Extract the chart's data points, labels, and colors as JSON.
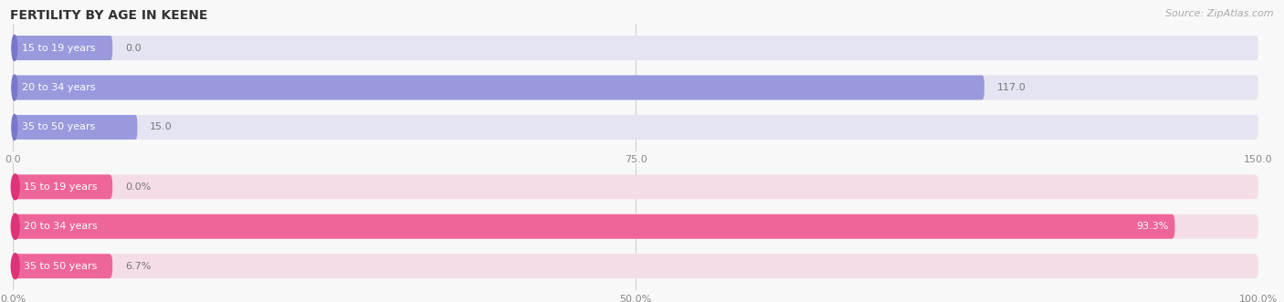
{
  "title": "FERTILITY BY AGE IN KEENE",
  "source": "Source: ZipAtlas.com",
  "top_chart": {
    "categories": [
      "15 to 19 years",
      "20 to 34 years",
      "35 to 50 years"
    ],
    "values": [
      0.0,
      117.0,
      15.0
    ],
    "max_value": 150.0,
    "tick_values": [
      0.0,
      75.0,
      150.0
    ],
    "bar_color": "#9999dd",
    "bar_bg_color": "#e4e4f2",
    "bar_dark_color": "#7777cc",
    "label_inside_color": "#444444",
    "value_label_inside_color": "#ffffff",
    "value_label_outside_color": "#777777"
  },
  "bottom_chart": {
    "categories": [
      "15 to 19 years",
      "20 to 34 years",
      "35 to 50 years"
    ],
    "values": [
      0.0,
      93.3,
      6.7
    ],
    "max_value": 100.0,
    "tick_values": [
      0.0,
      50.0,
      100.0
    ],
    "tick_labels": [
      "0.0%",
      "50.0%",
      "100.0%"
    ],
    "bar_color": "#ee6699",
    "bar_bg_color": "#f5dde8",
    "bar_dark_color": "#dd3377",
    "label_inside_color": "#444444",
    "value_label_inside_color": "#ffffff",
    "value_label_outside_color": "#777777"
  },
  "bg_color": "#f8f8f8",
  "chart_bg_color": "#f2f2f8",
  "title_fontsize": 10,
  "label_fontsize": 8,
  "tick_fontsize": 8,
  "source_fontsize": 8
}
